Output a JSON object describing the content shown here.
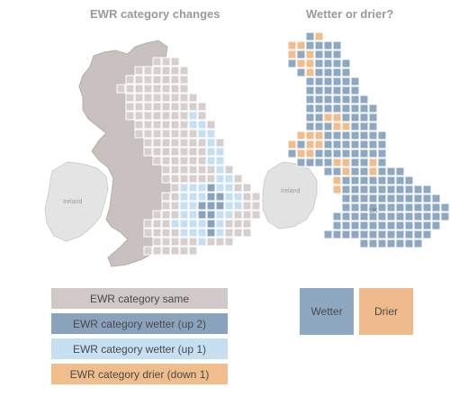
{
  "titles": {
    "left": "EWR category changes",
    "right": "Wetter or drier?"
  },
  "map_labels": {
    "ireland": "Ireland",
    "uk": "UK"
  },
  "legend_left": [
    {
      "label": "EWR category same",
      "color": "#d0c9c7"
    },
    {
      "label": "EWR category wetter (up 2)",
      "color": "#8aa3bd"
    },
    {
      "label": "EWR category wetter (up 1)",
      "color": "#c6dff1"
    },
    {
      "label": "EWR category drier (down 1)",
      "color": "#f0bd8d"
    }
  ],
  "legend_right": [
    {
      "label": "Wetter",
      "color": "#8ea8c2"
    },
    {
      "label": "Drier",
      "color": "#efbb8c"
    }
  ],
  "colors": {
    "land": "#c8c1bf",
    "ireland": "#e4e4e4",
    "grid_same": "#d6cfcd",
    "wetter_up2": "#8aa3bd",
    "wetter_up1": "#c6dff1",
    "drier": "#f0bd8d",
    "wetter_tile": "#8ea8c2"
  }
}
